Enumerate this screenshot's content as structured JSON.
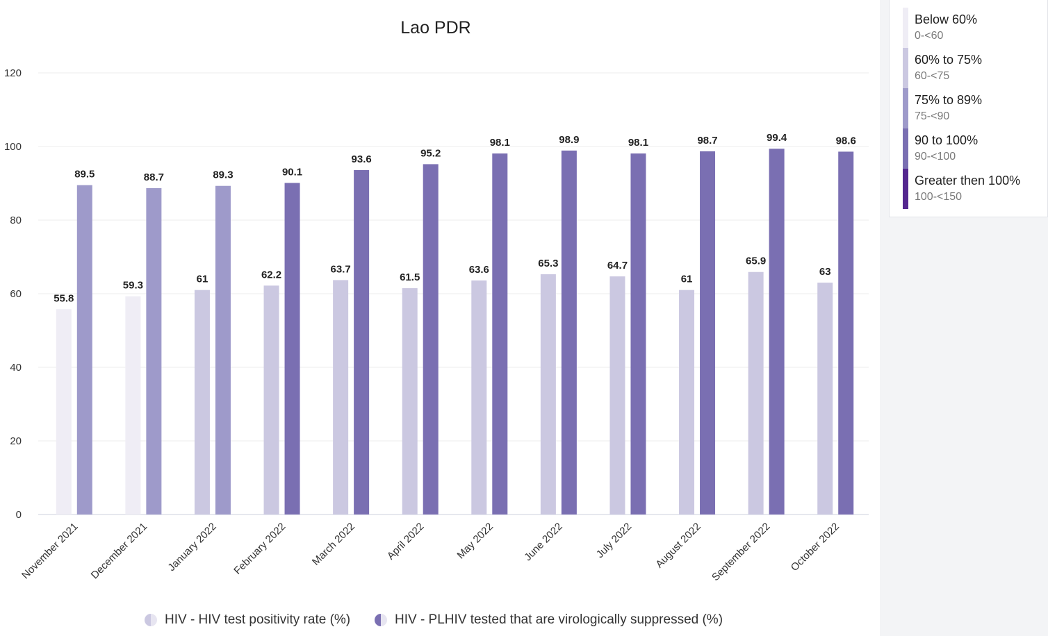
{
  "chart_data": {
    "type": "bar",
    "title": "Lao PDR",
    "categories": [
      "November 2021",
      "December 2021",
      "January 2022",
      "February 2022",
      "March 2022",
      "April 2022",
      "May 2022",
      "June 2022",
      "July 2022",
      "August 2022",
      "September 2022",
      "October 2022"
    ],
    "series": [
      {
        "name": "HIV - HIV test positivity rate (%)",
        "values": [
          55.8,
          59.3,
          61,
          62.2,
          63.7,
          61.5,
          63.6,
          65.3,
          64.7,
          61,
          65.9,
          63
        ]
      },
      {
        "name": "HIV - PLHIV tested that are virologically suppressed (%)",
        "values": [
          89.5,
          88.7,
          89.3,
          90.1,
          93.6,
          95.2,
          98.1,
          98.9,
          98.1,
          98.7,
          99.4,
          98.6
        ]
      }
    ],
    "data_labels": [
      [
        "55.8",
        "59.3",
        "61",
        "62.2",
        "63.7",
        "61.5",
        "63.6",
        "65.3",
        "64.7",
        "61",
        "65.9",
        "63"
      ],
      [
        "89.5",
        "88.7",
        "89.3",
        "90.1",
        "93.6",
        "95.2",
        "98.1",
        "98.9",
        "98.1",
        "98.7",
        "99.4",
        "98.6"
      ]
    ],
    "y_ticks": [
      "0",
      "20",
      "40",
      "60",
      "80",
      "100",
      "120"
    ],
    "ylim": [
      0,
      120
    ],
    "grid": true,
    "legend_position": "bottom",
    "color_scale": [
      {
        "label": "Below 60%",
        "range": "0-<60",
        "min": 0,
        "max": 60,
        "color": "#efedf5"
      },
      {
        "label": "60% to 75%",
        "range": "60-<75",
        "min": 60,
        "max": 75,
        "color": "#cbc8e1"
      },
      {
        "label": "75% to 89%",
        "range": "75-<90",
        "min": 75,
        "max": 90,
        "color": "#9e9aca"
      },
      {
        "label": "90 to 100%",
        "range": "90-<100",
        "min": 90,
        "max": 100,
        "color": "#7a6fb2"
      },
      {
        "label": "Greater then 100%",
        "range": "100-<150",
        "min": 100,
        "max": 150,
        "color": "#54278f"
      }
    ],
    "legend_icon_colors": [
      "#cbc8e1",
      "#7a6fb2"
    ]
  }
}
